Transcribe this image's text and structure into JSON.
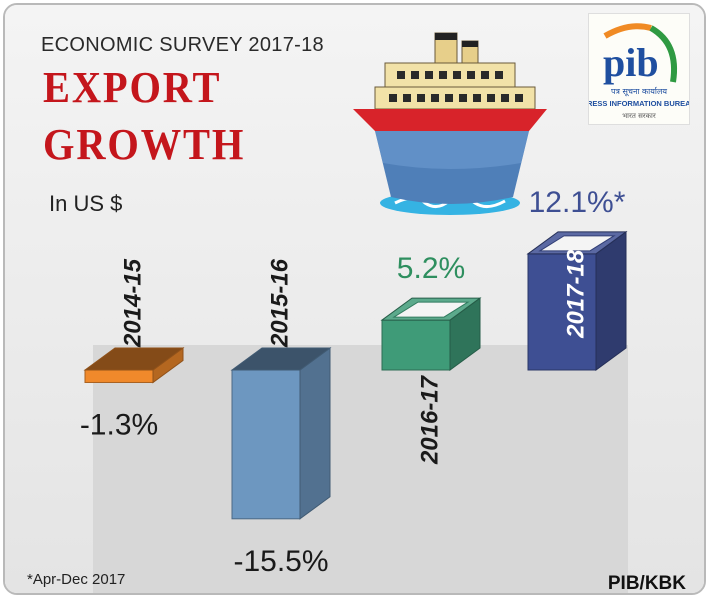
{
  "header": {
    "survey": "ECONOMIC SURVEY 2017-18",
    "title_line1": "EXPORT",
    "title_line2": "GROWTH",
    "unit": "In US $"
  },
  "logo": {
    "brand": "pib",
    "hindi_text": "पत्र सूचना कार्यालय",
    "name": "PRESS INFORMATION BUREAU",
    "footer_hindi": "भारत सरकार"
  },
  "footer": {
    "note": "*Apr-Dec 2017",
    "credit": "PIB/KBK"
  },
  "icons": [
    "ship-icon",
    "pib-logo-icon"
  ],
  "colors": {
    "title": "#c4161c",
    "bar_2014_15": "#f0892b",
    "bar_2015_16": "#6d97c0",
    "bar_2016_17": "#3f9b78",
    "bar_2017_18": "#3e4f93"
  },
  "chart_data": {
    "type": "bar",
    "categories": [
      "2014-15",
      "2015-16",
      "2016-17",
      "2017-18"
    ],
    "values": [
      -1.3,
      -15.5,
      5.2,
      12.1
    ],
    "value_labels": [
      "-1.3%",
      "-15.5%",
      "5.2%",
      "12.1%*"
    ],
    "unit": "%",
    "colors": [
      "#f0892b",
      "#6d97c0",
      "#3f9b78",
      "#3e4f93"
    ],
    "grid": false,
    "legend": "none"
  }
}
